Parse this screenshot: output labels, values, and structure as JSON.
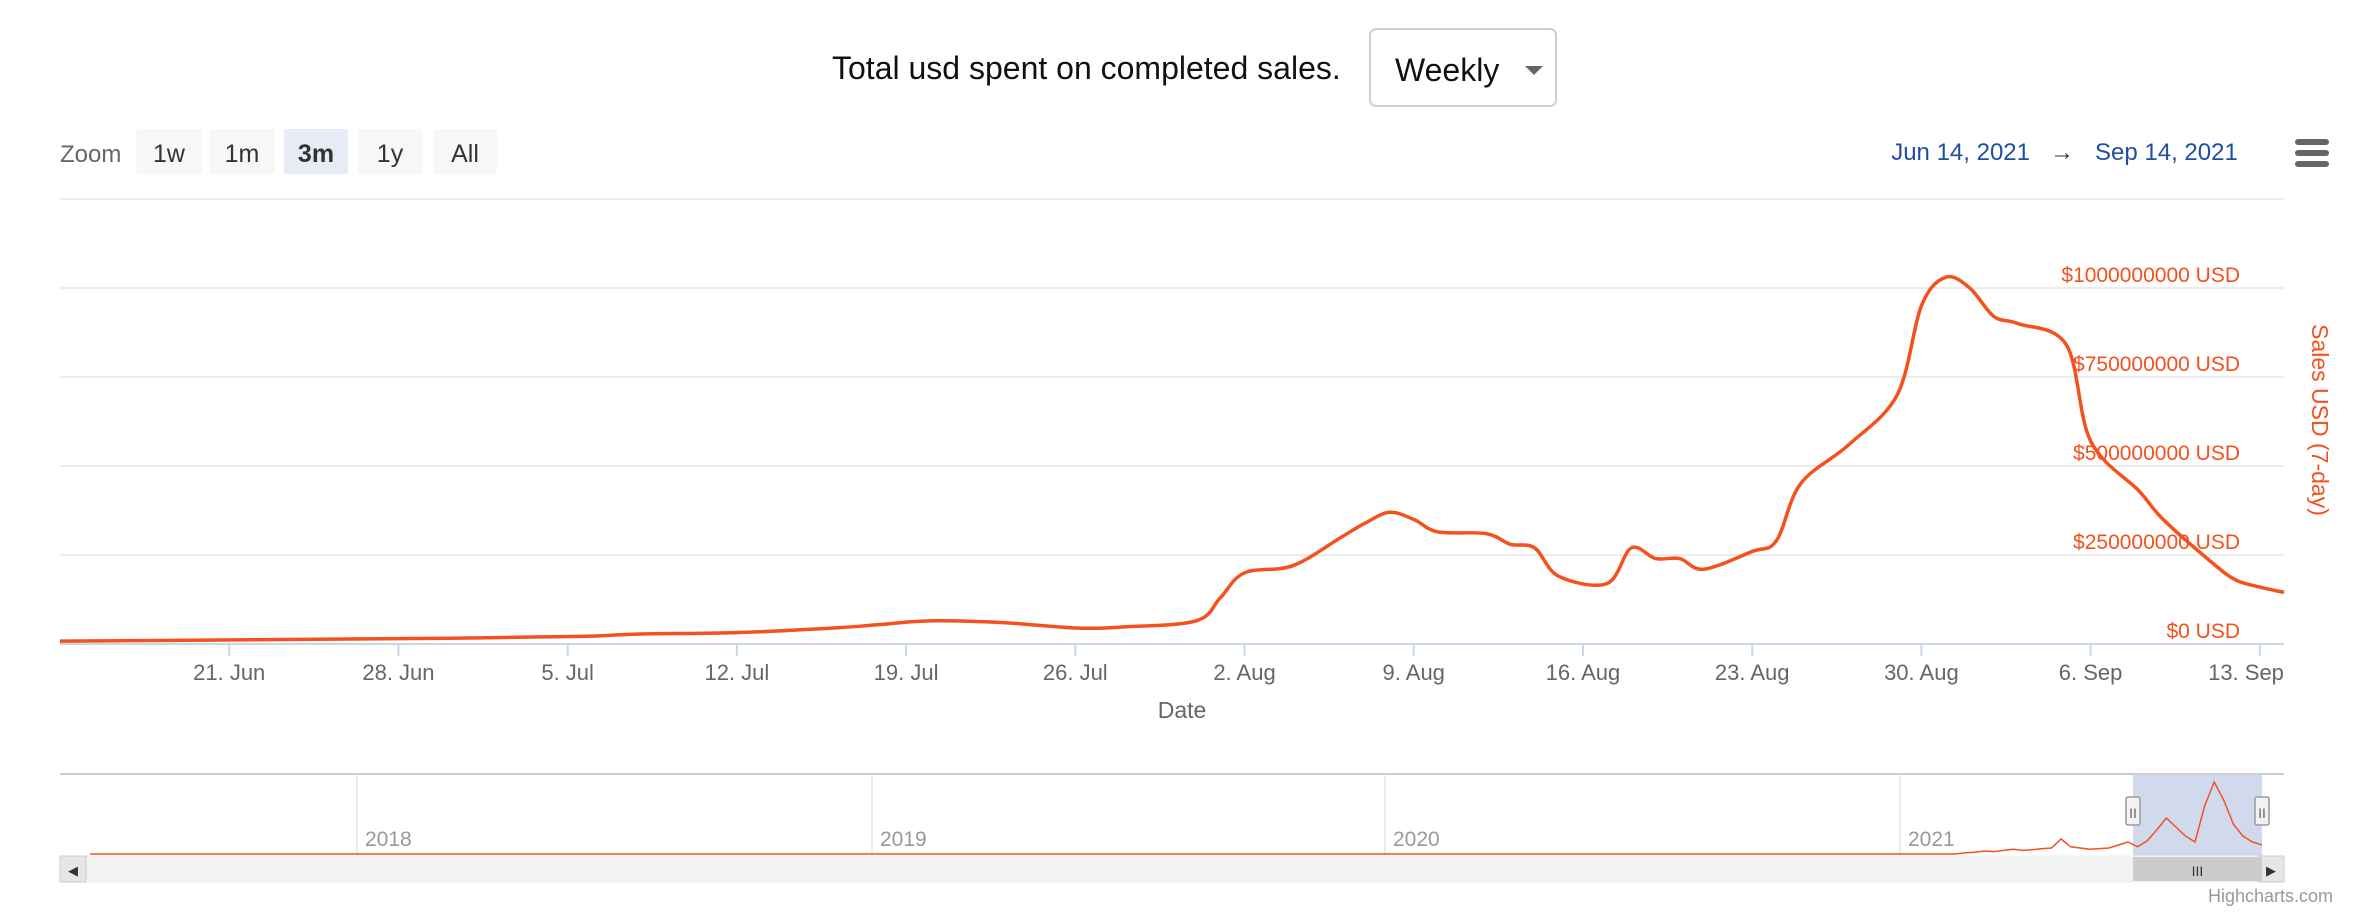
{
  "header": {
    "title": "Total usd spent on completed sales.",
    "period_select": {
      "value": "Weekly"
    }
  },
  "zoom": {
    "label": "Zoom",
    "buttons": [
      "1w",
      "1m",
      "3m",
      "1y",
      "All"
    ],
    "selected": "3m"
  },
  "range": {
    "from": "Jun 14, 2021",
    "arrow": "→",
    "to": "Sep 14, 2021"
  },
  "credits": "Highcharts.com",
  "colors": {
    "series": "#f4511e",
    "axis_label": "#f4511e",
    "range_text": "#1f4fa3",
    "navigator_mask": "#ccd6eb"
  },
  "chart_data": {
    "type": "line",
    "xlabel": "Date",
    "ylabel": "Sales USD (7-day)",
    "y_axis_side": "right",
    "ylim": [
      0,
      1000000000
    ],
    "yticks": [
      {
        "value": 0,
        "label": "$0 USD"
      },
      {
        "value": 250000000,
        "label": "$250000000 USD"
      },
      {
        "value": 500000000,
        "label": "$500000000 USD"
      },
      {
        "value": 750000000,
        "label": "$750000000 USD"
      },
      {
        "value": 1000000000,
        "label": "$1000000000 USD"
      }
    ],
    "xticks": [
      "21. Jun",
      "28. Jun",
      "5. Jul",
      "12. Jul",
      "19. Jul",
      "26. Jul",
      "2. Aug",
      "9. Aug",
      "16. Aug",
      "23. Aug",
      "30. Aug",
      "6. Sep",
      "13. Sep"
    ],
    "x_range": [
      "2021-06-14",
      "2021-09-14"
    ],
    "grid": true,
    "series": [
      {
        "values": [
          [
            "2021-06-14",
            8000000
          ],
          [
            "2021-06-18",
            10000000
          ],
          [
            "2021-06-22",
            12000000
          ],
          [
            "2021-06-26",
            14000000
          ],
          [
            "2021-06-30",
            16000000
          ],
          [
            "2021-07-04",
            20000000
          ],
          [
            "2021-07-06",
            22000000
          ],
          [
            "2021-07-08",
            28000000
          ],
          [
            "2021-07-12",
            32000000
          ],
          [
            "2021-07-16",
            45000000
          ],
          [
            "2021-07-18",
            55000000
          ],
          [
            "2021-07-20",
            65000000
          ],
          [
            "2021-07-23",
            60000000
          ],
          [
            "2021-07-26",
            45000000
          ],
          [
            "2021-07-28",
            48000000
          ],
          [
            "2021-07-31",
            65000000
          ],
          [
            "2021-08-01",
            130000000
          ],
          [
            "2021-08-02",
            200000000
          ],
          [
            "2021-08-04",
            220000000
          ],
          [
            "2021-08-06",
            300000000
          ],
          [
            "2021-08-07",
            340000000
          ],
          [
            "2021-08-08",
            370000000
          ],
          [
            "2021-08-09",
            350000000
          ],
          [
            "2021-08-10",
            315000000
          ],
          [
            "2021-08-12",
            310000000
          ],
          [
            "2021-08-13",
            280000000
          ],
          [
            "2021-08-14",
            270000000
          ],
          [
            "2021-08-15",
            190000000
          ],
          [
            "2021-08-17",
            170000000
          ],
          [
            "2021-08-18",
            270000000
          ],
          [
            "2021-08-19",
            240000000
          ],
          [
            "2021-08-20",
            240000000
          ],
          [
            "2021-08-21",
            210000000
          ],
          [
            "2021-08-23",
            260000000
          ],
          [
            "2021-08-24",
            290000000
          ],
          [
            "2021-08-25",
            450000000
          ],
          [
            "2021-08-27",
            560000000
          ],
          [
            "2021-08-29",
            700000000
          ],
          [
            "2021-08-30",
            950000000
          ],
          [
            "2021-08-31",
            1030000000
          ],
          [
            "2021-09-01",
            1000000000
          ],
          [
            "2021-09-02",
            920000000
          ],
          [
            "2021-09-03",
            900000000
          ],
          [
            "2021-09-05",
            840000000
          ],
          [
            "2021-09-06",
            570000000
          ],
          [
            "2021-09-08",
            430000000
          ],
          [
            "2021-09-09",
            350000000
          ],
          [
            "2021-09-11",
            230000000
          ],
          [
            "2021-09-12",
            180000000
          ],
          [
            "2021-09-13",
            160000000
          ],
          [
            "2021-09-14",
            145000000
          ]
        ]
      }
    ]
  },
  "navigator": {
    "years": [
      "2018",
      "2019",
      "2020",
      "2021"
    ],
    "selected_range": [
      "2021-06-14",
      "2021-09-14"
    ],
    "handle_glyph": "II",
    "thumb_glyph": "III",
    "scroll_left": "◀",
    "scroll_right": "▶",
    "series": [
      0,
      0,
      0,
      0,
      0,
      0,
      0,
      0,
      0,
      0,
      0,
      0,
      0,
      0,
      0,
      0,
      0,
      0,
      0,
      0,
      0,
      0,
      0,
      0,
      0,
      0,
      0,
      0,
      0,
      0,
      0,
      0,
      0,
      0,
      0,
      0,
      0,
      0,
      0,
      0,
      0,
      0,
      0,
      0,
      0,
      0,
      0,
      0,
      0,
      0,
      0,
      0,
      0,
      0,
      0,
      0,
      0,
      0,
      0,
      0,
      0,
      0,
      0,
      0,
      0,
      0,
      0,
      0,
      0,
      0,
      0,
      0,
      0,
      0,
      0,
      0,
      0,
      0,
      0,
      0,
      0,
      0,
      0,
      0,
      0,
      0,
      0,
      0,
      0,
      0,
      0,
      0,
      0,
      0,
      0,
      0,
      0,
      0,
      0,
      0,
      0,
      0,
      0,
      0,
      0,
      0,
      0,
      0,
      0,
      0,
      0,
      0,
      0,
      0,
      0,
      0,
      0,
      0,
      0,
      0,
      0,
      0,
      0,
      0,
      0,
      0,
      0,
      0,
      0,
      0,
      0,
      0,
      0,
      0,
      0,
      0,
      0,
      0,
      0,
      0,
      0,
      0,
      0,
      0,
      0,
      0,
      0,
      0,
      0,
      0,
      0,
      0,
      0,
      0,
      0,
      0,
      0,
      0,
      0,
      0,
      0,
      0,
      0,
      0,
      0,
      0,
      0,
      0,
      0,
      0,
      0,
      0,
      0,
      0,
      0,
      0,
      0,
      0,
      0,
      0,
      0,
      0,
      0,
      0,
      0,
      0,
      0,
      0,
      0,
      0,
      0,
      0,
      0,
      0,
      0,
      0,
      2,
      3,
      5,
      4,
      6,
      8,
      6,
      7,
      9,
      10,
      25,
      12,
      10,
      8,
      9,
      10,
      15,
      20,
      12,
      22,
      40,
      60,
      45,
      30,
      20,
      80,
      120,
      90,
      50,
      30,
      20,
      15
    ]
  }
}
